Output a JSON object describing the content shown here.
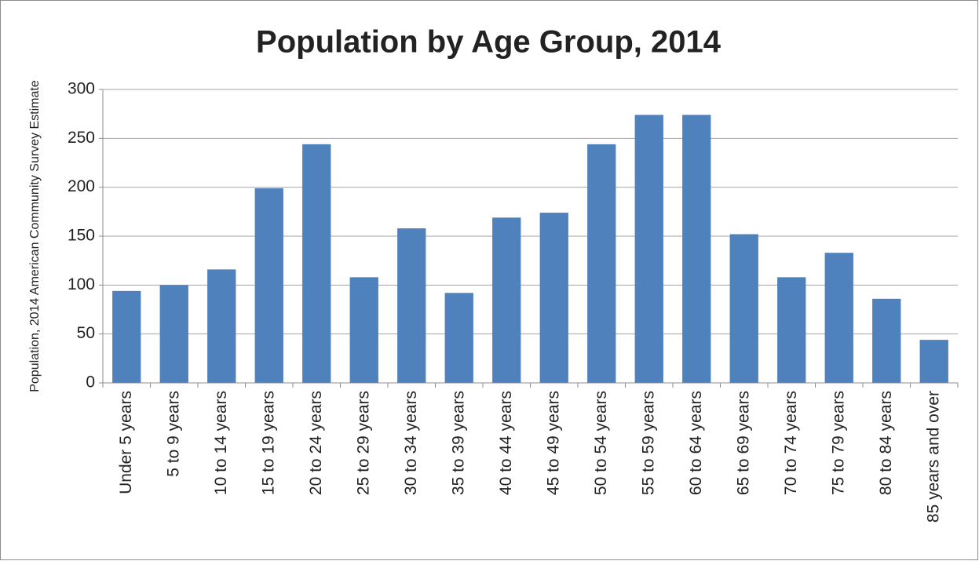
{
  "chart_data": {
    "type": "bar",
    "title": "Population by Age Group, 2014",
    "y_label": "Population, 2014 American Community Survey Estimate",
    "categories": [
      "Under 5 years",
      "5 to 9 years",
      "10 to 14 years",
      "15 to 19 years",
      "20 to 24 years",
      "25 to 29 years",
      "30 to 34 years",
      "35 to 39 years",
      "40 to 44 years",
      "45 to 49 years",
      "50 to 54 years",
      "55 to 59 years",
      "60 to 64 years",
      "65 to 69 years",
      "70 to 74 years",
      "75 to 79 years",
      "80 to 84 years",
      "85 years and over"
    ],
    "values": [
      94,
      100,
      116,
      199,
      244,
      108,
      158,
      92,
      169,
      174,
      244,
      274,
      274,
      152,
      108,
      133,
      86,
      44
    ],
    "color": "#4f81bd",
    "ylim": [
      0,
      300
    ],
    "yticks": [
      0,
      50,
      100,
      150,
      200,
      250,
      300
    ],
    "grid": true
  }
}
